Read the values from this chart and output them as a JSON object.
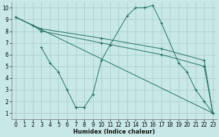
{
  "background_color": "#c8e8e8",
  "grid_color": "#a8cccc",
  "line_color": "#1a6b5a",
  "xlabel": "Humidex (Indice chaleur)",
  "xlim": [
    -0.5,
    23.5
  ],
  "ylim": [
    0.5,
    10.5
  ],
  "xticks": [
    0,
    1,
    2,
    3,
    4,
    5,
    6,
    7,
    8,
    9,
    10,
    11,
    12,
    13,
    14,
    15,
    16,
    17,
    18,
    19,
    20,
    21,
    22,
    23
  ],
  "yticks": [
    1,
    2,
    3,
    4,
    5,
    6,
    7,
    8,
    9,
    10
  ],
  "curve_diagonal_plain": {
    "x": [
      0,
      23
    ],
    "y": [
      9.2,
      1.0
    ]
  },
  "curve_upper": {
    "x": [
      0,
      2,
      3,
      10,
      17,
      22,
      23
    ],
    "y": [
      9.2,
      8.5,
      8.2,
      7.4,
      6.5,
      5.5,
      1.0
    ]
  },
  "curve_lower": {
    "x": [
      0,
      2,
      3,
      10,
      17,
      22,
      23
    ],
    "y": [
      9.2,
      8.5,
      8.0,
      7.0,
      6.0,
      5.0,
      1.0
    ]
  },
  "curve_humidex": {
    "x": [
      3,
      4,
      5,
      6,
      7,
      8,
      9,
      10,
      11,
      13,
      14,
      15,
      16,
      17,
      19,
      20,
      21,
      22,
      23
    ],
    "y": [
      6.6,
      5.3,
      4.5,
      3.0,
      1.5,
      1.5,
      2.6,
      5.5,
      6.8,
      9.3,
      10.0,
      10.0,
      10.2,
      8.7,
      5.3,
      4.5,
      3.0,
      2.0,
      1.0
    ]
  }
}
